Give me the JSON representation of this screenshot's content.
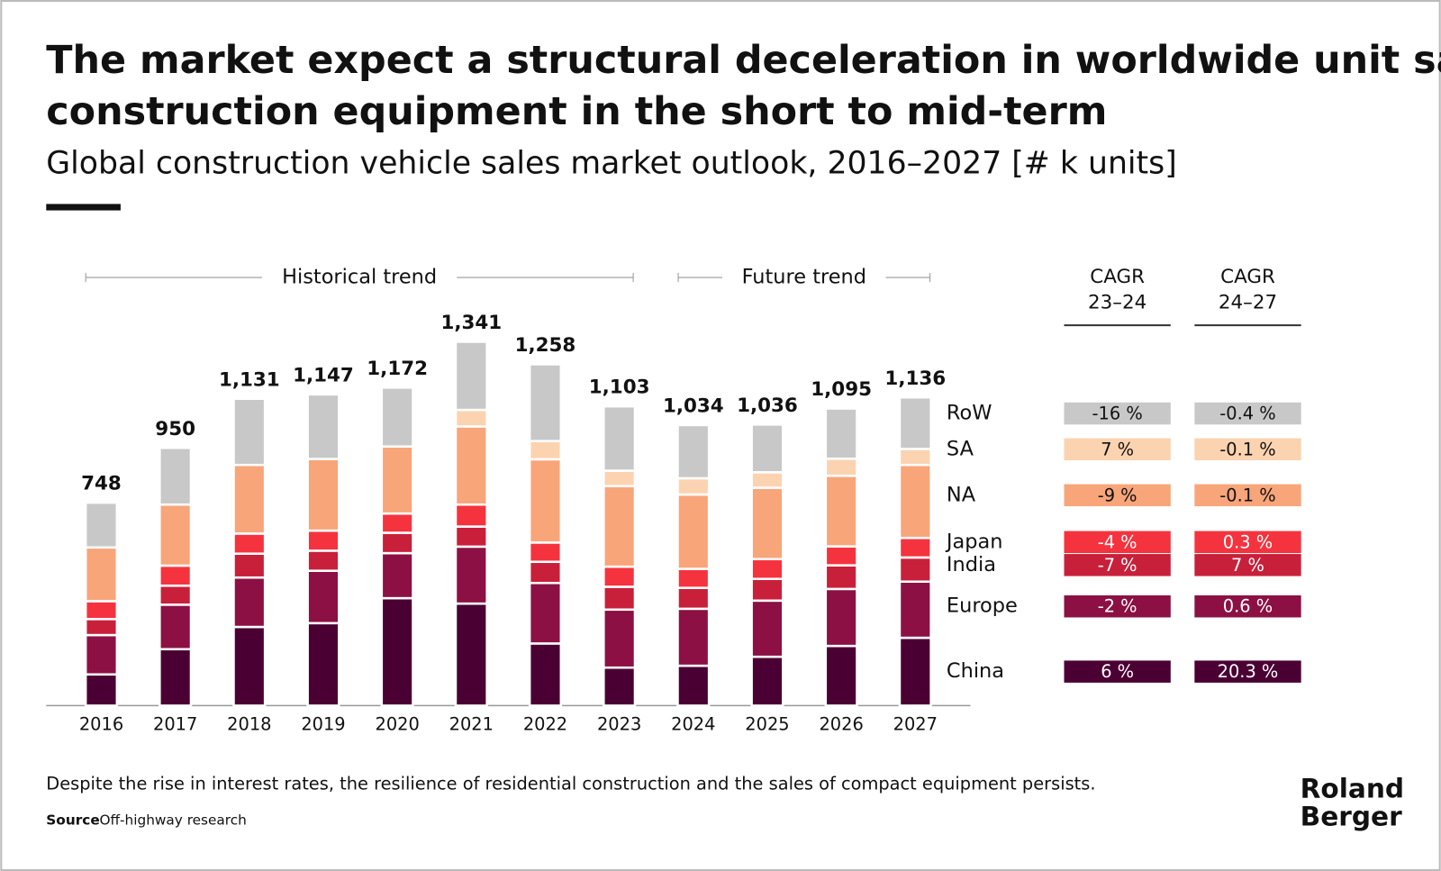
{
  "title": "The market expect a structural deceleration in worldwide unit sales for construction equipment in the short to mid-term",
  "subtitle": "Global construction vehicle sales market outlook, 2016–2027 [# k units]",
  "chart_data": {
    "type": "stacked_bar",
    "categories": [
      "2016",
      "2017",
      "2018",
      "2019",
      "2020",
      "2021",
      "2022",
      "2023",
      "2024",
      "2025",
      "2026",
      "2027"
    ],
    "series": [
      {
        "name": "China",
        "color": "#4b0033",
        "values": [
          115,
          208,
          290,
          304,
          396,
          376,
          229,
          140,
          147,
          180,
          220,
          250
        ]
      },
      {
        "name": "Europe",
        "color": "#8c1044",
        "values": [
          145,
          164,
          182,
          193,
          166,
          210,
          223,
          214,
          210,
          207,
          210,
          207
        ]
      },
      {
        "name": "India",
        "color": "#c8203a",
        "values": [
          59,
          70,
          88,
          74,
          75,
          74,
          78,
          84,
          77,
          80,
          87,
          89
        ]
      },
      {
        "name": "Japan",
        "color": "#f5333f",
        "values": [
          66,
          74,
          74,
          74,
          71,
          81,
          71,
          74,
          70,
          73,
          70,
          72
        ]
      },
      {
        "name": "NA",
        "color": "#f8a57a",
        "values": [
          198,
          225,
          253,
          264,
          247,
          288,
          307,
          297,
          274,
          263,
          260,
          269
        ]
      },
      {
        "name": "SA",
        "color": "#fcd3b0",
        "values": [
          0,
          0,
          0,
          0,
          0,
          61,
          67,
          57,
          60,
          57,
          63,
          59
        ]
      },
      {
        "name": "RoW",
        "color": "#c8c8c8",
        "values": [
          165,
          209,
          244,
          238,
          217,
          251,
          283,
          237,
          196,
          176,
          185,
          190
        ]
      }
    ],
    "totals": [
      748,
      950,
      1131,
      1147,
      1172,
      1341,
      1258,
      1103,
      1034,
      1036,
      1095,
      1136
    ],
    "total_labels": [
      "748",
      "950",
      "1,131",
      "1,147",
      "1,172",
      "1,341",
      "1,258",
      "1,103",
      "1,034",
      "1,036",
      "1,095",
      "1,136"
    ],
    "annotations": [
      "Historical trend",
      "Future trend"
    ]
  },
  "cagr_table": {
    "headers": [
      [
        "CAGR",
        "23–24"
      ],
      [
        "CAGR",
        "24–27"
      ]
    ],
    "rows": [
      [
        "6 %",
        "20.3 %"
      ],
      [
        "-2 %",
        "0.6 %"
      ],
      [
        "-7 %",
        "7 %"
      ],
      [
        "-4 %",
        "0.3 %"
      ],
      [
        "-9 %",
        "-0.1 %"
      ],
      [
        "7 %",
        "-0.1 %"
      ],
      [
        "-16 %",
        "-0.4 %"
      ]
    ]
  },
  "footnote": "Despite the rise in interest rates, the resilience of residential construction and the sales of compact equipment persists.",
  "source_label": "Source",
  "source": "Off-highway research",
  "logo": [
    "Roland",
    "Berger"
  ]
}
